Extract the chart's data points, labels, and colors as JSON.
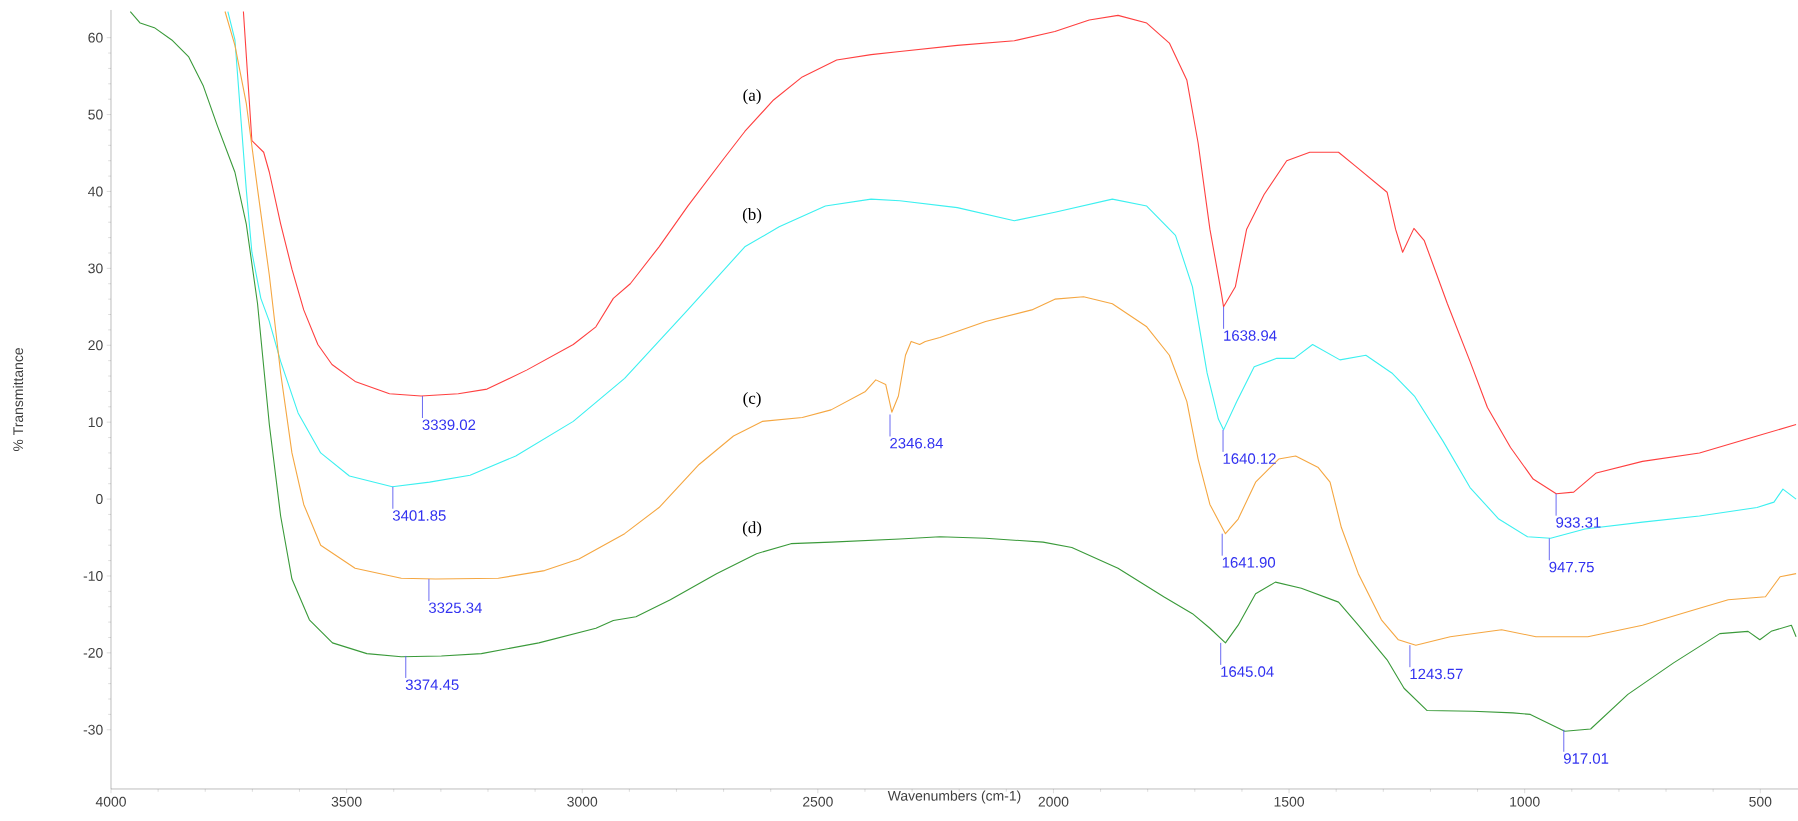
{
  "chart_data": {
    "type": "line",
    "xlabel": "Wavenumbers (cm-1)",
    "ylabel": "% Transmittance",
    "xlim": [
      4000,
      420
    ],
    "ylim": [
      -37.7,
      63.6
    ],
    "xticks": [
      4000,
      3500,
      3000,
      2500,
      2000,
      1500,
      1000,
      500
    ],
    "yticks": [
      -30,
      -20,
      -10,
      0,
      10,
      20,
      30,
      40,
      50,
      60
    ],
    "grid": false,
    "legend": false,
    "series": [
      {
        "name": "(a)",
        "color": "#ff4040",
        "x": [
          3719,
          3701,
          3676,
          3664,
          3640,
          3616,
          3591,
          3561,
          3531,
          3482,
          3409,
          3342,
          3263,
          3202,
          3117,
          3019,
          2971,
          2934,
          2898,
          2837,
          2776,
          2703,
          2655,
          2594,
          2533,
          2460,
          2387,
          2326,
          2204,
          2083,
          1997,
          1924,
          1863,
          1802,
          1754,
          1717,
          1693,
          1668,
          1644,
          1639,
          1614,
          1590,
          1553,
          1505,
          1456,
          1395,
          1359,
          1292,
          1274,
          1259,
          1235,
          1213,
          1164,
          1116,
          1079,
          1030,
          982,
          933,
          896,
          848,
          750,
          629,
          507,
          424
        ],
        "values": [
          63.4,
          46.6,
          45.1,
          42.5,
          35.8,
          29.9,
          24.6,
          20.1,
          17.5,
          15.3,
          13.7,
          13.4,
          13.7,
          14.3,
          16.8,
          20.1,
          22.4,
          26.1,
          28.0,
          32.8,
          38.1,
          44.0,
          47.8,
          51.9,
          54.9,
          57.1,
          57.8,
          58.2,
          59.0,
          59.6,
          60.8,
          62.3,
          62.9,
          61.9,
          59.3,
          54.5,
          46.3,
          35.1,
          26.9,
          25.0,
          27.6,
          35.1,
          39.6,
          44.0,
          45.1,
          45.1,
          43.3,
          39.9,
          35.1,
          32.1,
          35.2,
          33.6,
          25.4,
          17.9,
          11.9,
          6.7,
          2.6,
          0.7,
          0.9,
          3.4,
          4.9,
          6.0,
          8.2,
          9.7
        ]
      },
      {
        "name": "(b)",
        "color": "#3cf0f0",
        "x": [
          3752,
          3737,
          3725,
          3713,
          3701,
          3682,
          3664,
          3640,
          3603,
          3555,
          3494,
          3403,
          3324,
          3238,
          3141,
          3019,
          2910,
          2776,
          2655,
          2582,
          2484,
          2387,
          2326,
          2204,
          2083,
          1997,
          1875,
          1802,
          1741,
          1705,
          1674,
          1650,
          1639,
          1611,
          1574,
          1526,
          1489,
          1450,
          1392,
          1337,
          1282,
          1234,
          1173,
          1116,
          1055,
          994,
          945,
          872,
          750,
          629,
          507,
          471,
          452,
          424
        ],
        "values": [
          63.4,
          59.7,
          50.0,
          40.3,
          32.1,
          26.1,
          23.1,
          17.9,
          11.2,
          6.0,
          3.0,
          1.6,
          2.2,
          3.1,
          5.6,
          10.1,
          15.7,
          24.6,
          32.8,
          35.4,
          38.1,
          39.0,
          38.8,
          37.9,
          36.2,
          37.3,
          39.0,
          38.1,
          34.3,
          27.6,
          16.4,
          10.4,
          9.0,
          12.7,
          17.2,
          18.3,
          18.3,
          20.1,
          18.1,
          18.7,
          16.4,
          13.4,
          7.5,
          1.5,
          -2.6,
          -4.9,
          -5.1,
          -3.9,
          -3.0,
          -2.2,
          -1.1,
          -0.4,
          1.3,
          0.0
        ]
      },
      {
        "name": "(c)",
        "color": "#f5a742",
        "x": [
          3758,
          3737,
          3713,
          3689,
          3664,
          3640,
          3616,
          3591,
          3555,
          3482,
          3384,
          3311,
          3178,
          3080,
          3007,
          2910,
          2837,
          2752,
          2679,
          2618,
          2533,
          2472,
          2399,
          2377,
          2356,
          2343,
          2329,
          2314,
          2302,
          2284,
          2272,
          2241,
          2144,
          2046,
          1997,
          1936,
          1875,
          1802,
          1754,
          1717,
          1693,
          1668,
          1635,
          1608,
          1571,
          1522,
          1486,
          1438,
          1413,
          1389,
          1353,
          1304,
          1268,
          1231,
          1158,
          1049,
          976,
          866,
          750,
          629,
          568,
          489,
          458,
          424
        ],
        "values": [
          63.4,
          59.0,
          51.5,
          40.3,
          29.1,
          16.4,
          6.0,
          -0.7,
          -6.0,
          -9.0,
          -10.3,
          -10.4,
          -10.3,
          -9.3,
          -7.8,
          -4.5,
          -1.1,
          4.5,
          8.2,
          10.1,
          10.6,
          11.6,
          14.0,
          15.5,
          14.9,
          11.3,
          13.4,
          18.7,
          20.5,
          20.1,
          20.5,
          21.0,
          23.1,
          24.6,
          26.0,
          26.3,
          25.4,
          22.4,
          18.7,
          12.7,
          5.2,
          -0.7,
          -4.5,
          -2.6,
          2.2,
          5.2,
          5.6,
          4.1,
          2.2,
          -3.7,
          -9.7,
          -15.7,
          -18.3,
          -19.0,
          -17.9,
          -17.0,
          -17.9,
          -17.9,
          -16.4,
          -14.2,
          -13.1,
          -12.7,
          -10.1,
          -9.7
        ]
      },
      {
        "name": "(d)",
        "color": "#3a9a3a",
        "x": [
          3959,
          3938,
          3908,
          3871,
          3835,
          3804,
          3774,
          3737,
          3713,
          3689,
          3664,
          3640,
          3616,
          3579,
          3530,
          3457,
          3384,
          3299,
          3214,
          3092,
          2971,
          2934,
          2886,
          2813,
          2715,
          2630,
          2557,
          2472,
          2326,
          2241,
          2144,
          2022,
          1961,
          1863,
          1766,
          1705,
          1668,
          1635,
          1608,
          1571,
          1529,
          1474,
          1395,
          1353,
          1292,
          1256,
          1207,
          1110,
          1025,
          988,
          915,
          860,
          781,
          684,
          586,
          526,
          501,
          477,
          434,
          424
        ],
        "values": [
          63.4,
          61.9,
          61.3,
          59.7,
          57.5,
          53.7,
          48.5,
          42.5,
          35.8,
          25.4,
          9.7,
          -2.2,
          -10.4,
          -15.7,
          -18.7,
          -20.1,
          -20.5,
          -20.4,
          -20.1,
          -18.7,
          -16.8,
          -15.8,
          -15.3,
          -13.1,
          -9.7,
          -7.1,
          -5.8,
          -5.6,
          -5.2,
          -4.9,
          -5.1,
          -5.6,
          -6.3,
          -9.0,
          -12.7,
          -14.9,
          -16.8,
          -18.7,
          -16.4,
          -12.3,
          -10.8,
          -11.6,
          -13.4,
          -16.4,
          -20.9,
          -24.6,
          -27.5,
          -27.6,
          -27.8,
          -28.0,
          -30.2,
          -29.9,
          -25.4,
          -21.3,
          -17.5,
          -17.2,
          -18.3,
          -17.2,
          -16.4,
          -17.9
        ]
      }
    ],
    "annotations": [
      {
        "text": "3339.02",
        "x": 3339.02,
        "y": 13.4
      },
      {
        "text": "3401.85",
        "x": 3401.85,
        "y": 1.6
      },
      {
        "text": "3325.34",
        "x": 3325.34,
        "y": -10.4
      },
      {
        "text": "3374.45",
        "x": 3374.45,
        "y": -20.4
      },
      {
        "text": "2346.84",
        "x": 2346.84,
        "y": 11.0
      },
      {
        "text": "1638.94",
        "x": 1638.94,
        "y": 25.0
      },
      {
        "text": "1640.12",
        "x": 1640.12,
        "y": 9.0
      },
      {
        "text": "1641.90",
        "x": 1641.9,
        "y": -4.5
      },
      {
        "text": "1645.04",
        "x": 1645.04,
        "y": -18.7
      },
      {
        "text": "1243.57",
        "x": 1243.57,
        "y": -19.0
      },
      {
        "text": "947.75",
        "x": 947.75,
        "y": -5.1
      },
      {
        "text": "933.31",
        "x": 933.31,
        "y": 0.7
      },
      {
        "text": "917.01",
        "x": 917.01,
        "y": -30.0
      }
    ]
  }
}
